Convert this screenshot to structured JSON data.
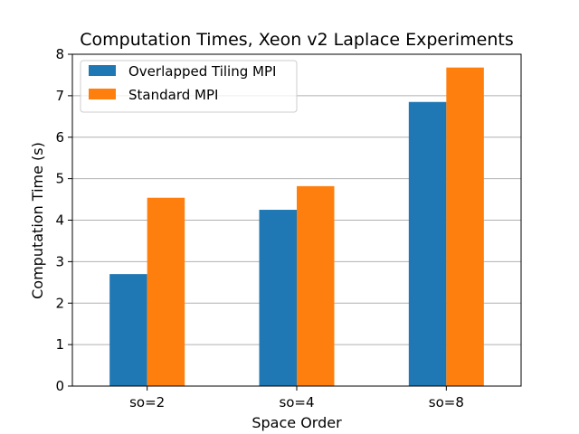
{
  "chart_data": {
    "type": "bar",
    "title": "Computation Times, Xeon v2 Laplace Experiments",
    "xlabel": "Space Order",
    "ylabel": "Computation Time (s)",
    "categories": [
      "so=2",
      "so=4",
      "so=8"
    ],
    "series": [
      {
        "name": "Overlapped Tiling MPI",
        "color": "#1f77b4",
        "values": [
          2.7,
          4.25,
          6.85
        ]
      },
      {
        "name": "Standard MPI",
        "color": "#ff7f0e",
        "values": [
          4.54,
          4.82,
          7.68
        ]
      }
    ],
    "ylim": [
      0,
      8
    ],
    "yticks": [
      0,
      1,
      2,
      3,
      4,
      5,
      6,
      7,
      8
    ],
    "grid": "horizontal",
    "legend_position": "top-left"
  }
}
